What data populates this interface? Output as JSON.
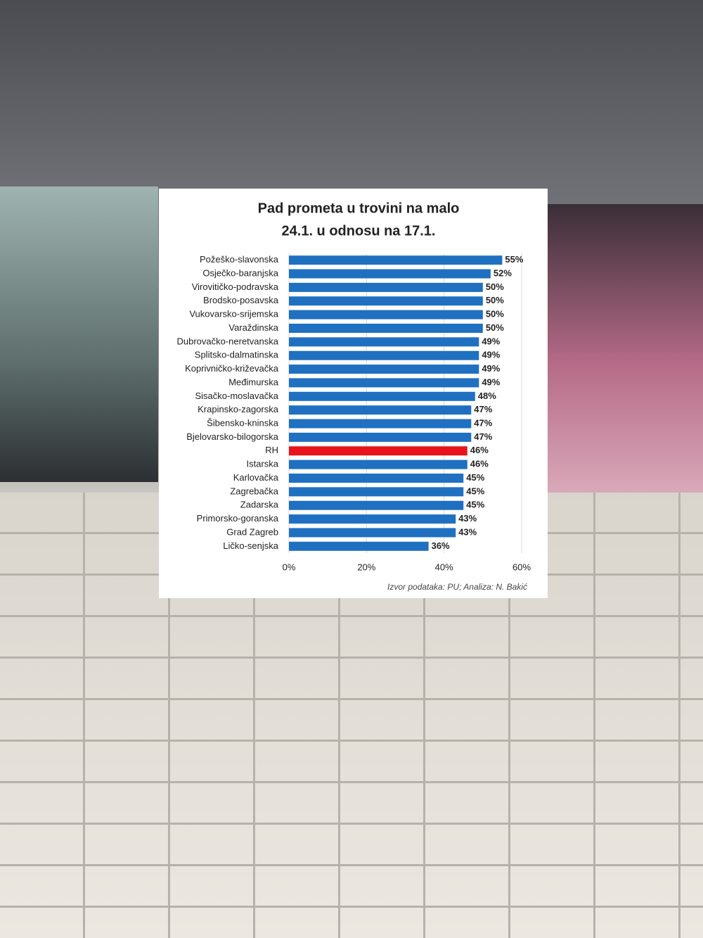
{
  "chart_data": {
    "type": "bar",
    "orientation": "horizontal",
    "title": [
      "Pad prometa u trovini na malo",
      "24.1. u odnosu na 17.1."
    ],
    "categories": [
      "Požeško-slavonska",
      "Osječko-baranjska",
      "Virovitičko-podravska",
      "Brodsko-posavska",
      "Vukovarsko-srijemska",
      "Varaždinska",
      "Dubrovačko-neretvanska",
      "Splitsko-dalmatinska",
      "Koprivničko-križevačka",
      "Međimurska",
      "Sisačko-moslavačka",
      "Krapinsko-zagorska",
      "Šibensko-kninska",
      "Bjelovarsko-bilogorska",
      "RH",
      "Istarska",
      "Karlovačka",
      "Zagrebačka",
      "Zadarska",
      "Primorsko-goranska",
      "Grad Zagreb",
      "Ličko-senjska"
    ],
    "values": [
      55,
      52,
      50,
      50,
      50,
      50,
      49,
      49,
      49,
      49,
      48,
      47,
      47,
      47,
      46,
      46,
      45,
      45,
      45,
      43,
      43,
      36
    ],
    "value_labels": [
      "55%",
      "52%",
      "50%",
      "50%",
      "50%",
      "50%",
      "49%",
      "49%",
      "49%",
      "49%",
      "48%",
      "47%",
      "47%",
      "47%",
      "46%",
      "46%",
      "45%",
      "45%",
      "45%",
      "43%",
      "43%",
      "36%"
    ],
    "colors": [
      "#1f70c1",
      "#1f70c1",
      "#1f70c1",
      "#1f70c1",
      "#1f70c1",
      "#1f70c1",
      "#1f70c1",
      "#1f70c1",
      "#1f70c1",
      "#1f70c1",
      "#1f70c1",
      "#1f70c1",
      "#1f70c1",
      "#1f70c1",
      "#e8141b",
      "#1f70c1",
      "#1f70c1",
      "#1f70c1",
      "#1f70c1",
      "#1f70c1",
      "#1f70c1",
      "#1f70c1"
    ],
    "xlim": [
      0,
      60
    ],
    "xticks": [
      {
        "value": 0,
        "label": "0%"
      },
      {
        "value": 20,
        "label": "20%"
      },
      {
        "value": 40,
        "label": "40%"
      },
      {
        "value": 60,
        "label": "60%"
      }
    ],
    "grid": true,
    "source": "Izvor podataka: PU; Analiza: N. Bakić"
  }
}
